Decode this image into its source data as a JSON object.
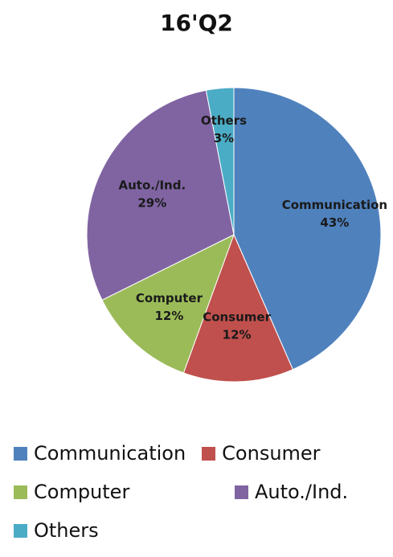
{
  "chart_data": {
    "type": "pie",
    "title": "16'Q2",
    "categories": [
      "Communication",
      "Consumer",
      "Computer",
      "Auto./Ind.",
      "Others"
    ],
    "values": [
      43,
      12,
      12,
      29,
      3
    ],
    "value_labels": [
      "43%",
      "12%",
      "12%",
      "29%",
      "3%"
    ],
    "unit": "%",
    "colors": [
      "#4F81BD",
      "#C0504D",
      "#9BBB59",
      "#8064A2",
      "#4BACC6"
    ],
    "start_angle_deg": 0,
    "direction": "clockwise",
    "legend": {
      "position": "bottom",
      "rows": [
        [
          "Communication",
          "Consumer"
        ],
        [
          "Computer",
          "Auto./Ind."
        ],
        [
          "Others"
        ]
      ]
    }
  }
}
